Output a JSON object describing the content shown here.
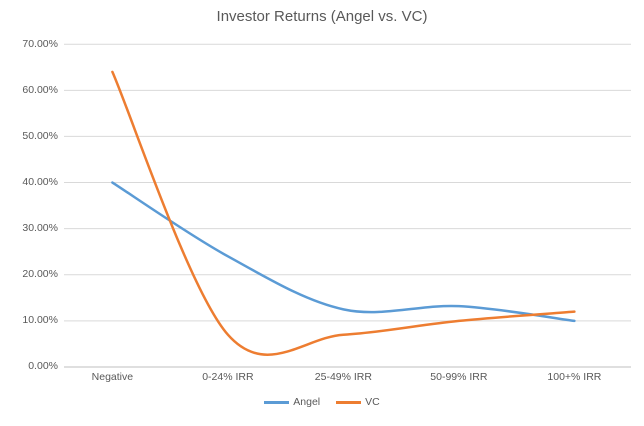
{
  "chart_data": {
    "type": "line",
    "title": "Investor Returns (Angel vs. VC)",
    "categories": [
      "Negative",
      "0-24% IRR",
      "25-49% IRR",
      "50-99% IRR",
      "100+% IRR"
    ],
    "series": [
      {
        "name": "Angel",
        "color": "#5B9BD5",
        "values": [
          40.0,
          24.0,
          12.5,
          13.2,
          10.0
        ]
      },
      {
        "name": "VC",
        "color": "#ED7D31",
        "values": [
          64.0,
          7.0,
          7.0,
          10.0,
          12.0
        ]
      }
    ],
    "y_axis": {
      "min": 0,
      "max": 70,
      "step": 10,
      "unit": "%",
      "tick_labels": [
        "70.00%",
        "60.00%",
        "50.00%",
        "40.00%",
        "30.00%",
        "20.00%",
        "10.00%",
        "0.00%"
      ]
    },
    "smooth_lines": true,
    "grid": true,
    "legend_position": "bottom",
    "colors": {
      "grid": "#D9D9D9",
      "axis": "#BFBFBF",
      "text": "#595959",
      "background": "#FFFFFF"
    }
  }
}
